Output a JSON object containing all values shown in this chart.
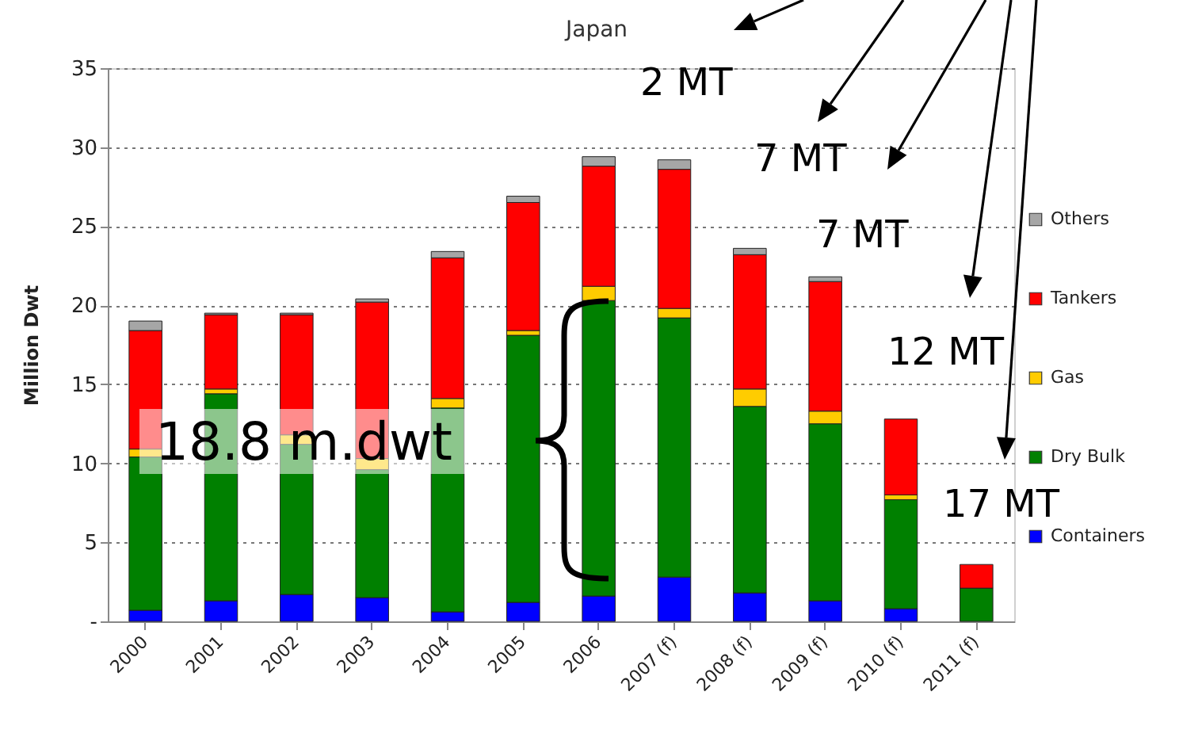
{
  "chart_data": {
    "type": "bar",
    "stacked": true,
    "ylabel": "Million Dwt",
    "categories": [
      "2000",
      "2001",
      "2002",
      "2003",
      "2004",
      "2005",
      "2006",
      "2007 (f)",
      "2008 (f)",
      "2009 (f)",
      "2010 (f)",
      "2011 (f)"
    ],
    "series": [
      {
        "name": "Containers",
        "color": "#0000ff",
        "values": [
          0.7,
          1.3,
          1.7,
          1.5,
          0.6,
          1.2,
          1.6,
          2.8,
          1.8,
          1.3,
          0.8,
          null
        ]
      },
      {
        "name": "Dry Bulk",
        "color": "#008000",
        "values": [
          9.7,
          13.1,
          9.5,
          8.1,
          12.9,
          16.9,
          18.7,
          16.4,
          11.8,
          11.2,
          6.9,
          2.1
        ]
      },
      {
        "name": "Gas",
        "color": "#ffcc00",
        "values": [
          0.5,
          0.3,
          0.6,
          0.7,
          0.6,
          0.3,
          0.9,
          0.6,
          1.1,
          0.8,
          0.3,
          null
        ]
      },
      {
        "name": "Tankers",
        "color": "#ff0000",
        "values": [
          7.5,
          4.7,
          7.6,
          9.9,
          8.9,
          8.1,
          7.6,
          8.8,
          8.5,
          8.2,
          4.8,
          1.5
        ]
      },
      {
        "name": "Others",
        "color": "#a6a6a6",
        "values": [
          0.6,
          0.1,
          0.1,
          0.2,
          0.4,
          0.4,
          0.6,
          0.6,
          0.4,
          0.3,
          null,
          null
        ]
      }
    ],
    "ylim": [
      0,
      35
    ],
    "yticks": [
      {
        "value": 0,
        "label": "-"
      },
      5,
      10,
      15,
      20,
      25,
      30,
      35
    ],
    "grid": "y",
    "legend": "right",
    "annotations": [
      "Japan",
      "2 MT",
      "7 MT",
      "7 MT",
      "12 MT",
      "17 MT",
      "18.8 m.dwt"
    ]
  }
}
